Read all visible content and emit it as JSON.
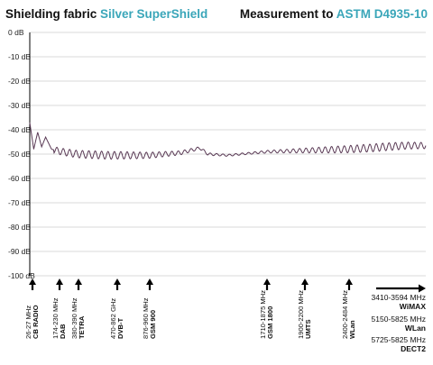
{
  "header": {
    "left_prefix": "Shielding fabric ",
    "left_highlight": "Silver SuperShield",
    "right_prefix": "Measurement to ",
    "right_highlight": "ASTM D4935-10"
  },
  "colors": {
    "accent": "#3aa6b9",
    "curve": "#5a3a55",
    "grid": "#d9d9d9",
    "axis": "#000000"
  },
  "chart_data": {
    "type": "line",
    "ylim": [
      0,
      -100
    ],
    "yticks": [
      0,
      -10,
      -20,
      -30,
      -40,
      -50,
      -60,
      -70,
      -80,
      -90,
      -100
    ],
    "ytick_labels": [
      "0 dB",
      "-10 dB",
      "-20 dB",
      "-30 dB",
      "-40 dB",
      "-50 dB",
      "-60 dB",
      "-70 dB",
      "-80 dB",
      "-90 dB",
      "-100 dB"
    ],
    "series": [
      {
        "trend": [
          [
            0,
            -37
          ],
          [
            0.01,
            -48
          ],
          [
            0.02,
            -41
          ],
          [
            0.03,
            -47
          ],
          [
            0.04,
            -43
          ],
          [
            0.055,
            -48
          ],
          [
            0.08,
            -49
          ],
          [
            0.12,
            -50
          ],
          [
            0.2,
            -50.5
          ],
          [
            0.3,
            -50.5
          ],
          [
            0.38,
            -49.5
          ],
          [
            0.43,
            -47.5
          ],
          [
            0.45,
            -50
          ],
          [
            0.5,
            -50.5
          ],
          [
            0.6,
            -49
          ],
          [
            0.7,
            -48.5
          ],
          [
            0.8,
            -48
          ],
          [
            0.86,
            -47.5
          ],
          [
            0.9,
            -47
          ],
          [
            0.95,
            -46.5
          ],
          [
            1.0,
            -46.5
          ]
        ]
      }
    ],
    "band_markers": [
      {
        "freq": "26-27 MHz",
        "name": "CB RADIO"
      },
      {
        "freq": "174-230 MHz",
        "name": "DAB"
      },
      {
        "freq": "380-390 MHz",
        "name": "TETRA"
      },
      {
        "freq": "470-862 GHz",
        "name": "DVB-T"
      },
      {
        "freq": "876-960 MHz",
        "name": "GSM 900"
      },
      {
        "freq": "1710-1875 MHz",
        "name": "GSM 1800"
      },
      {
        "freq": "1900-2200 MHz",
        "name": "UMTS"
      },
      {
        "freq": "2400-2484 MHz",
        "name": "WLan"
      }
    ],
    "right_bands": [
      {
        "freq": "3410-3594 MHz",
        "name": "WiMAX"
      },
      {
        "freq": "5150-5825 MHz",
        "name": "WLan"
      },
      {
        "freq": "5725-5825 MHz",
        "name": "DECT2"
      }
    ]
  }
}
